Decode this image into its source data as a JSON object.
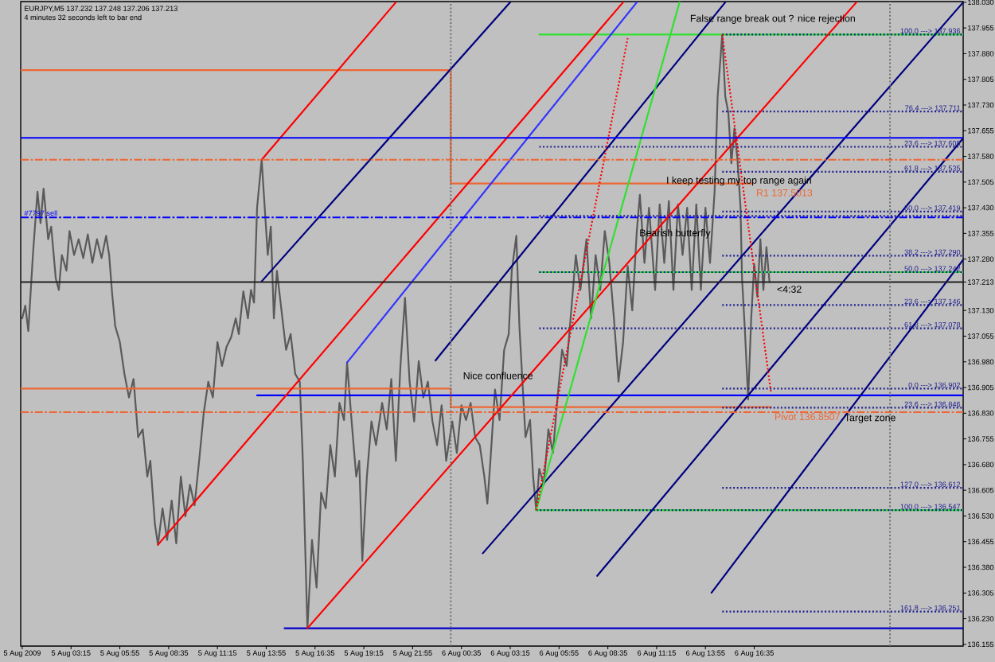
{
  "chart_data": {
    "type": "line",
    "title": "EURJPY,M5 137.232 137.248 137.206 137.213",
    "subtitle": "4 minutes 32 seconds left to bar end",
    "xlim": [
      "2009-08-05T00:30",
      "2009-08-07T04:00"
    ],
    "ylim": [
      136.15,
      138.032
    ],
    "xticks": [
      {
        "value": "2009-08-05T00:35",
        "label": "5 Aug 2009"
      },
      {
        "value": "2009-08-05T03:15",
        "label": "5 Aug 03:15"
      },
      {
        "value": "2009-08-05T05:55",
        "label": "5 Aug 05:55"
      },
      {
        "value": "2009-08-05T08:35",
        "label": "5 Aug 08:35"
      },
      {
        "value": "2009-08-05T11:15",
        "label": "5 Aug 11:15"
      },
      {
        "value": "2009-08-05T13:55",
        "label": "5 Aug 13:55"
      },
      {
        "value": "2009-08-05T16:35",
        "label": "5 Aug 16:35"
      },
      {
        "value": "2009-08-05T19:15",
        "label": "5 Aug 19:15"
      },
      {
        "value": "2009-08-05T21:55",
        "label": "5 Aug 21:55"
      },
      {
        "value": "2009-08-06T00:35",
        "label": "6 Aug 00:35"
      },
      {
        "value": "2009-08-06T03:15",
        "label": "6 Aug 03:15"
      },
      {
        "value": "2009-08-06T05:55",
        "label": "6 Aug 05:55"
      },
      {
        "value": "2009-08-06T08:35",
        "label": "6 Aug 08:35"
      },
      {
        "value": "2009-08-06T11:15",
        "label": "6 Aug 11:15"
      },
      {
        "value": "2009-08-06T13:55",
        "label": "6 Aug 13:55"
      },
      {
        "value": "2009-08-06T16:35",
        "label": "6 Aug 16:35"
      }
    ],
    "yticks": [
      136.155,
      {
        "value": 136.23,
        "label": "136.230"
      },
      136.305,
      {
        "value": 136.38,
        "label": "136.380"
      },
      136.455,
      {
        "value": 136.53,
        "label": "136.530"
      },
      136.605,
      {
        "value": 136.68,
        "label": "136.680"
      },
      136.755,
      {
        "value": 136.83,
        "label": "136.830"
      },
      136.905,
      {
        "value": 136.98,
        "label": "136.980"
      },
      137.055,
      {
        "value": 137.13,
        "label": "137.130"
      },
      137.213,
      {
        "value": 137.28,
        "label": "137.280"
      },
      137.355,
      {
        "value": 137.43,
        "label": "137.430"
      },
      137.505,
      {
        "value": 137.58,
        "label": "137.580"
      },
      137.655,
      {
        "value": 137.73,
        "label": "137.730"
      },
      137.805,
      {
        "value": 137.88,
        "label": "137.880"
      },
      137.955,
      {
        "value": 138.03,
        "label": "138.030"
      }
    ],
    "series": [
      {
        "color": "#5a5a5a",
        "x": [
          "2009-08-05T00:35",
          "2009-08-05T00:45",
          "2009-08-05T00:55",
          "2009-08-05T01:10",
          "2009-08-05T01:25",
          "2009-08-05T01:35",
          "2009-08-05T01:45",
          "2009-08-05T02:00",
          "2009-08-05T02:10",
          "2009-08-05T02:25",
          "2009-08-05T02:35",
          "2009-08-05T02:45",
          "2009-08-05T03:00",
          "2009-08-05T03:10",
          "2009-08-05T03:25",
          "2009-08-05T03:40",
          "2009-08-05T03:55",
          "2009-08-05T04:10",
          "2009-08-05T04:25",
          "2009-08-05T04:40",
          "2009-08-05T04:55",
          "2009-08-05T05:10",
          "2009-08-05T05:20",
          "2009-08-05T05:30",
          "2009-08-05T05:40",
          "2009-08-05T05:55",
          "2009-08-05T06:10",
          "2009-08-05T06:25",
          "2009-08-05T06:40",
          "2009-08-05T06:55",
          "2009-08-05T07:10",
          "2009-08-05T07:25",
          "2009-08-05T07:35",
          "2009-08-05T07:50",
          "2009-08-05T08:00",
          "2009-08-05T08:15",
          "2009-08-05T08:30",
          "2009-08-05T08:45",
          "2009-08-05T09:00",
          "2009-08-05T09:15",
          "2009-08-05T09:30",
          "2009-08-05T09:45",
          "2009-08-05T10:00",
          "2009-08-05T10:15",
          "2009-08-05T10:30",
          "2009-08-05T10:45",
          "2009-08-05T11:00",
          "2009-08-05T11:15",
          "2009-08-05T11:30",
          "2009-08-05T11:45",
          "2009-08-05T12:00",
          "2009-08-05T12:15",
          "2009-08-05T12:25",
          "2009-08-05T12:40",
          "2009-08-05T12:55",
          "2009-08-05T13:05",
          "2009-08-05T13:15",
          "2009-08-05T13:25",
          "2009-08-05T13:40",
          "2009-08-05T13:50",
          "2009-08-05T14:00",
          "2009-08-05T14:10",
          "2009-08-05T14:20",
          "2009-08-05T14:30",
          "2009-08-05T14:45",
          "2009-08-05T15:00",
          "2009-08-05T15:15",
          "2009-08-05T15:30",
          "2009-08-05T15:45",
          "2009-08-05T15:55",
          "2009-08-05T16:10",
          "2009-08-05T16:25",
          "2009-08-05T16:40",
          "2009-08-05T16:55",
          "2009-08-05T17:10",
          "2009-08-05T17:25",
          "2009-08-05T17:40",
          "2009-08-05T17:55",
          "2009-08-05T18:10",
          "2009-08-05T18:20",
          "2009-08-05T18:35",
          "2009-08-05T18:50",
          "2009-08-05T19:00",
          "2009-08-05T19:10",
          "2009-08-05T19:25",
          "2009-08-05T19:40",
          "2009-08-05T19:55",
          "2009-08-05T20:15",
          "2009-08-05T20:30",
          "2009-08-05T20:45",
          "2009-08-05T21:00",
          "2009-08-05T21:15",
          "2009-08-05T21:30",
          "2009-08-05T21:45",
          "2009-08-05T22:00",
          "2009-08-05T22:15",
          "2009-08-05T22:30",
          "2009-08-05T22:45",
          "2009-08-05T23:00",
          "2009-08-05T23:15",
          "2009-08-05T23:30",
          "2009-08-05T23:45",
          "2009-08-06T00:05",
          "2009-08-06T00:20",
          "2009-08-06T00:35",
          "2009-08-06T00:50",
          "2009-08-06T01:05",
          "2009-08-06T01:20",
          "2009-08-06T01:35",
          "2009-08-06T01:50",
          "2009-08-06T02:00",
          "2009-08-06T02:10",
          "2009-08-06T02:25",
          "2009-08-06T02:40",
          "2009-08-06T02:55",
          "2009-08-06T03:10",
          "2009-08-06T03:20",
          "2009-08-06T03:35",
          "2009-08-06T03:45",
          "2009-08-06T03:55",
          "2009-08-06T04:05",
          "2009-08-06T04:20",
          "2009-08-06T04:30",
          "2009-08-06T04:40",
          "2009-08-06T04:50",
          "2009-08-06T05:05",
          "2009-08-06T05:20",
          "2009-08-06T05:35",
          "2009-08-06T05:50",
          "2009-08-06T06:05",
          "2009-08-06T06:20",
          "2009-08-06T06:35",
          "2009-08-06T06:50",
          "2009-08-06T07:05",
          "2009-08-06T07:25",
          "2009-08-06T07:40",
          "2009-08-06T07:55",
          "2009-08-06T08:10",
          "2009-08-06T08:25",
          "2009-08-06T08:40",
          "2009-08-06T08:55",
          "2009-08-06T09:10",
          "2009-08-06T09:25",
          "2009-08-06T09:40",
          "2009-08-06T09:55",
          "2009-08-06T10:10",
          "2009-08-06T10:20",
          "2009-08-06T10:35",
          "2009-08-06T10:50",
          "2009-08-06T11:10",
          "2009-08-06T11:25",
          "2009-08-06T11:40",
          "2009-08-06T11:55",
          "2009-08-06T12:10",
          "2009-08-06T12:25",
          "2009-08-06T12:40",
          "2009-08-06T12:55",
          "2009-08-06T13:10",
          "2009-08-06T13:25",
          "2009-08-06T13:40",
          "2009-08-06T13:55",
          "2009-08-06T14:10",
          "2009-08-06T14:25",
          "2009-08-06T14:35",
          "2009-08-06T14:50",
          "2009-08-06T15:00",
          "2009-08-06T15:10",
          "2009-08-06T15:20",
          "2009-08-06T15:30",
          "2009-08-06T15:40",
          "2009-08-06T15:50",
          "2009-08-06T15:55",
          "2009-08-06T16:05",
          "2009-08-06T16:15",
          "2009-08-06T16:25",
          "2009-08-06T16:35",
          "2009-08-06T16:45",
          "2009-08-06T16:55",
          "2009-08-06T17:05",
          "2009-08-06T17:15",
          "2009-08-06T17:25"
        ],
        "values": [
          137.107,
          137.144,
          137.07,
          137.292,
          137.477,
          137.385,
          137.486,
          137.338,
          137.375,
          137.223,
          137.19,
          137.292,
          137.246,
          137.362,
          137.292,
          137.338,
          137.283,
          137.352,
          137.269,
          137.338,
          137.283,
          137.348,
          137.292,
          137.177,
          137.084,
          137.038,
          136.945,
          136.876,
          136.93,
          136.76,
          136.783,
          136.645,
          136.691,
          136.506,
          136.446,
          136.552,
          136.46,
          136.575,
          136.45,
          136.645,
          136.529,
          136.621,
          136.561,
          136.691,
          136.83,
          136.922,
          136.876,
          137.038,
          136.968,
          137.024,
          137.052,
          137.107,
          137.061,
          137.186,
          137.107,
          137.19,
          137.153,
          137.431,
          137.57,
          137.431,
          137.292,
          137.375,
          137.107,
          137.246,
          137.13,
          137.015,
          137.061,
          136.945,
          136.922,
          136.691,
          136.202,
          136.46,
          136.321,
          136.598,
          136.552,
          136.737,
          136.645,
          136.86,
          136.81,
          136.978,
          136.806,
          136.645,
          136.691,
          136.399,
          136.645,
          136.806,
          136.737,
          136.86,
          136.783,
          136.93,
          136.691,
          136.968,
          137.167,
          136.922,
          136.806,
          136.982,
          136.876,
          136.922,
          136.806,
          136.737,
          136.853,
          136.691,
          136.806,
          136.714,
          136.853,
          136.81,
          136.86,
          136.76,
          136.737,
          136.645,
          136.566,
          136.691,
          136.899,
          136.81,
          137.015,
          137.061,
          137.246,
          137.348,
          137.084,
          136.922,
          136.76,
          136.81,
          136.645,
          136.547,
          136.668,
          136.621,
          136.783,
          136.714,
          136.876,
          137.015,
          136.968,
          137.13,
          137.292,
          137.19,
          137.338,
          137.107,
          137.292,
          137.19,
          137.362,
          137.269,
          137.107,
          136.922,
          137.038,
          137.26,
          137.13,
          137.362,
          137.468,
          137.269,
          137.43,
          137.19,
          137.44,
          137.269,
          137.45,
          137.19,
          137.44,
          137.292,
          137.43,
          137.19,
          137.44,
          137.19,
          137.43,
          137.269,
          137.477,
          137.755,
          137.936,
          137.755,
          137.708,
          137.56,
          137.662,
          137.57,
          137.431,
          137.223,
          137.061,
          136.87,
          137.107,
          137.265,
          137.17,
          137.338,
          137.19,
          137.315,
          137.213
        ]
      },
      {
        "name": "R1 137.5013",
        "color": "#ee6633",
        "x": [
          "2009-08-05T00:30",
          "2009-08-06T00:00",
          "2009-08-06T00:00",
          "2009-08-06T16:30"
        ],
        "values": [
          137.832,
          137.832,
          137.501,
          137.501
        ]
      },
      {
        "name": "Pivot 136.8507",
        "color": "#ee6633",
        "x": [
          "2009-08-05T00:30",
          "2009-08-06T00:00",
          "2009-08-06T00:00",
          "2009-08-06T17:30"
        ],
        "values": [
          136.902,
          136.902,
          136.848,
          136.848
        ]
      },
      {
        "color": "#0000ff",
        "x": [
          "2009-08-05T13:25",
          "2009-08-07T04:00"
        ],
        "values": [
          136.882,
          136.882
        ]
      },
      {
        "color": "#0000cc",
        "x": [
          "2009-08-05T14:55",
          "2009-08-07T04:00"
        ],
        "values": [
          136.202,
          136.202
        ]
      },
      {
        "color": "#30e030",
        "x": [
          "2009-08-06T04:50",
          "2009-08-07T04:00"
        ],
        "values": [
          137.936,
          137.936
        ]
      },
      {
        "color": "#30e030",
        "x": [
          "2009-08-06T04:50",
          "2009-08-07T04:00"
        ],
        "values": [
          137.242,
          137.242
        ]
      },
      {
        "color": "#30e030",
        "x": [
          "2009-08-06T04:40",
          "2009-08-07T04:00"
        ],
        "values": [
          136.547,
          136.547
        ]
      },
      {
        "name": "23.6 ---> 137.608",
        "color": "#202090",
        "line_style": "dotted",
        "x": [
          "2009-08-06T04:50",
          "2009-08-07T04:00"
        ],
        "values": [
          137.608,
          137.608
        ]
      },
      {
        "color": "#202090",
        "line_style": "dotted",
        "x": [
          "2009-08-06T04:50",
          "2009-08-07T04:00"
        ],
        "values": [
          137.406,
          137.406
        ]
      },
      {
        "name": "50.0 ---> 137.242",
        "color": "#202090",
        "line_style": "dotted",
        "x": [
          "2009-08-06T04:50",
          "2009-08-07T04:00"
        ],
        "values": [
          137.242,
          137.242
        ]
      },
      {
        "name": "61.8 ---> 137.078",
        "color": "#202090",
        "line_style": "dotted",
        "x": [
          "2009-08-06T04:50",
          "2009-08-07T04:00"
        ],
        "values": [
          137.078,
          137.078
        ]
      },
      {
        "name": "100.0 ---> 136.547",
        "color": "#202090",
        "line_style": "dotted",
        "x": [
          "2009-08-06T04:40",
          "2009-08-07T04:00"
        ],
        "values": [
          136.547,
          136.547
        ]
      },
      {
        "name": "100.0 ---> 137.936",
        "color": "#202090",
        "line_style": "dotted",
        "x": [
          "2009-08-06T14:50",
          "2009-08-07T04:00"
        ],
        "values": [
          137.936,
          137.936
        ]
      },
      {
        "name": "76.4 ---> 137.711",
        "color": "#202090",
        "line_style": "dotted",
        "x": [
          "2009-08-06T14:50",
          "2009-08-07T04:00"
        ],
        "values": [
          137.711,
          137.711
        ]
      },
      {
        "name": "61.8 ---> 137.535",
        "color": "#202090",
        "line_style": "dotted",
        "x": [
          "2009-08-06T14:50",
          "2009-08-07T04:00"
        ],
        "values": [
          137.535,
          137.535
        ]
      },
      {
        "name": "50.0 ---> 137.419",
        "color": "#202090",
        "line_style": "dotted",
        "x": [
          "2009-08-06T14:50",
          "2009-08-07T04:00"
        ],
        "values": [
          137.419,
          137.419
        ]
      },
      {
        "name": "38.2 ---> 137.290",
        "color": "#202090",
        "line_style": "dotted",
        "x": [
          "2009-08-06T14:50",
          "2009-08-07T04:00"
        ],
        "values": [
          137.29,
          137.29
        ]
      },
      {
        "name": "23.6 ---> 137.146",
        "color": "#202090",
        "line_style": "dotted",
        "x": [
          "2009-08-06T14:50",
          "2009-08-07T04:00"
        ],
        "values": [
          137.146,
          137.146
        ]
      },
      {
        "name": "0.0 ---> 136.902",
        "color": "#202090",
        "line_style": "dotted",
        "x": [
          "2009-08-06T14:50",
          "2009-08-07T04:00"
        ],
        "values": [
          136.902,
          136.902
        ]
      },
      {
        "name": "23.6 ---> 136.846",
        "color": "#202090",
        "line_style": "dotted",
        "x": [
          "2009-08-06T14:50",
          "2009-08-07T04:00"
        ],
        "values": [
          136.846,
          136.846
        ]
      },
      {
        "name": "127.0 ---> 136.612",
        "color": "#202090",
        "line_style": "dotted",
        "x": [
          "2009-08-06T14:50",
          "2009-08-07T04:00"
        ],
        "values": [
          136.612,
          136.612
        ]
      },
      {
        "name": "161.8 ---> 136.251",
        "color": "#202090",
        "line_style": "dotted",
        "x": [
          "2009-08-06T14:50",
          "2009-08-07T04:00"
        ],
        "values": [
          136.251,
          136.251
        ]
      },
      {
        "color": "#ff0000",
        "x": [
          "2009-08-05T13:40",
          "2009-08-05T21:00"
        ],
        "values": [
          137.57,
          138.03
        ]
      },
      {
        "color": "#ff0000",
        "x": [
          "2009-08-05T08:00",
          "2009-08-06T09:25"
        ],
        "values": [
          136.446,
          138.03
        ]
      },
      {
        "color": "#ff0000",
        "x": [
          "2009-08-05T16:10",
          "2009-08-06T22:10"
        ],
        "values": [
          136.202,
          138.03
        ]
      },
      {
        "color": "#000080",
        "x": [
          "2009-08-05T13:40",
          "2009-08-06T03:15"
        ],
        "values": [
          137.215,
          138.03
        ]
      },
      {
        "color": "#000080",
        "x": [
          "2009-08-05T23:10",
          "2009-08-06T15:00"
        ],
        "values": [
          136.984,
          138.03
        ]
      },
      {
        "color": "#000080",
        "x": [
          "2009-08-06T01:45",
          "2009-08-07T04:00"
        ],
        "values": [
          136.421,
          138.03
        ]
      },
      {
        "color": "#000080",
        "x": [
          "2009-08-06T08:00",
          "2009-08-07T04:00"
        ],
        "values": [
          136.355,
          137.633
        ]
      },
      {
        "color": "#000080",
        "x": [
          "2009-08-06T14:15",
          "2009-08-07T04:00"
        ],
        "values": [
          136.306,
          137.278
        ]
      },
      {
        "color": "#3333ff",
        "x": [
          "2009-08-05T18:20",
          "2009-08-06T10:10"
        ],
        "values": [
          136.978,
          138.03
        ]
      },
      {
        "color": "#30e030",
        "x": [
          "2009-08-06T04:40",
          "2009-08-06T12:30"
        ],
        "values": [
          136.547,
          138.03
        ]
      },
      {
        "color": "#ff0000",
        "line_style": "dotted",
        "x": [
          "2009-08-06T04:40",
          "2009-08-06T09:40"
        ],
        "values": [
          136.547,
          137.925
        ]
      },
      {
        "color": "#ff0000",
        "line_style": "dotted",
        "x": [
          "2009-08-06T14:50",
          "2009-08-06T17:30"
        ],
        "values": [
          137.936,
          136.89
        ]
      }
    ],
    "ref_lines": [
      {
        "axis": "y",
        "value": 137.634,
        "color": "#0000ff"
      },
      {
        "axis": "y",
        "value": 137.402,
        "color": "#0000ff",
        "line_style": "dashdot",
        "label": "#7797 sell"
      },
      {
        "axis": "y",
        "value": 137.57,
        "color": "#ee6633",
        "line_style": "dashdot"
      },
      {
        "axis": "y",
        "value": 136.833,
        "color": "#ee6633",
        "line_style": "dashdot"
      },
      {
        "axis": "y",
        "value": 137.213,
        "color": "#202020"
      },
      {
        "axis": "x",
        "value": "2009-08-06T00:00",
        "color": "#707070",
        "line_style": "dotted"
      },
      {
        "axis": "x",
        "value": "2009-08-07T00:00",
        "color": "#707070",
        "line_style": "dotted"
      }
    ],
    "annotations": [
      "False range break out ? nice rejection",
      {
        "text": "I keep testing my top range again",
        "x": "2009-08-06T15:45",
        "y": 137.508
      },
      {
        "text": "Bearish butterfly",
        "x": "2009-08-06T12:15",
        "y": 137.354
      },
      {
        "text": "Nice confluence",
        "x": "2009-08-06T02:35",
        "y": 136.94
      },
      {
        "text": "Target zone",
        "x": "2009-08-06T22:55",
        "y": 136.814
      },
      {
        "text": "<4:32",
        "x": "2009-08-06T18:30",
        "y": 137.192
      }
    ]
  }
}
